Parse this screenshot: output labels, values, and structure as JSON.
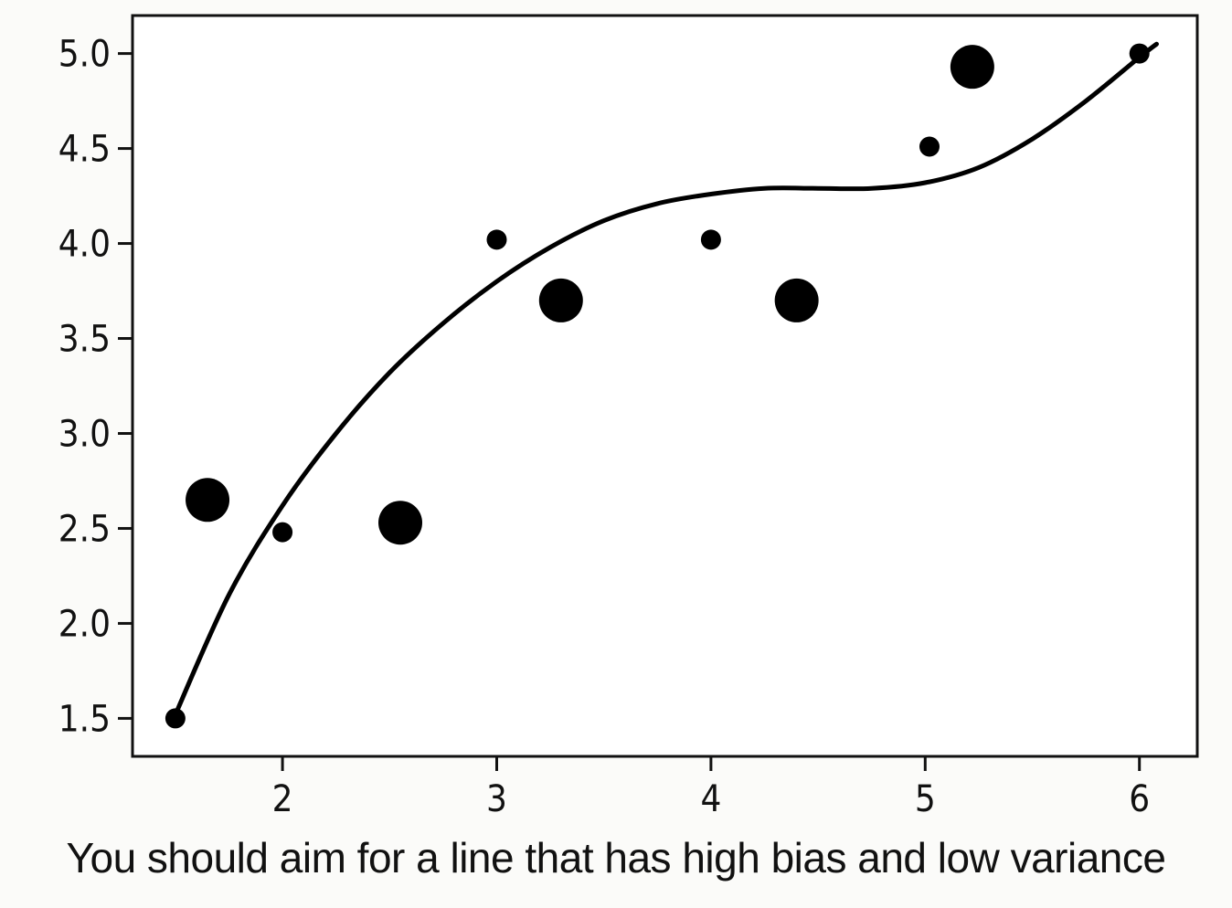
{
  "chart_data": {
    "type": "scatter",
    "title": "",
    "xlabel": "",
    "ylabel": "",
    "xlim": [
      1.3,
      6.27
    ],
    "ylim": [
      1.3,
      5.2
    ],
    "x_ticks": [
      {
        "value": 2,
        "label": "2"
      },
      {
        "value": 3,
        "label": "3"
      },
      {
        "value": 4,
        "label": "4"
      },
      {
        "value": 5,
        "label": "5"
      },
      {
        "value": 6,
        "label": "6"
      }
    ],
    "y_ticks": [
      {
        "value": 1.5,
        "label": "1.5"
      },
      {
        "value": 2.0,
        "label": "2.0"
      },
      {
        "value": 2.5,
        "label": "2.5"
      },
      {
        "value": 3.0,
        "label": "3.0"
      },
      {
        "value": 3.5,
        "label": "3.5"
      },
      {
        "value": 4.0,
        "label": "4.0"
      },
      {
        "value": 4.5,
        "label": "4.5"
      },
      {
        "value": 5.0,
        "label": "5.0"
      }
    ],
    "grid": false,
    "legend": "none",
    "point_color": "#000000",
    "points": [
      {
        "x": 1.5,
        "y": 1.5,
        "size": "small"
      },
      {
        "x": 1.65,
        "y": 2.65,
        "size": "large"
      },
      {
        "x": 2.0,
        "y": 2.48,
        "size": "small"
      },
      {
        "x": 2.55,
        "y": 2.53,
        "size": "large"
      },
      {
        "x": 3.0,
        "y": 4.02,
        "size": "small"
      },
      {
        "x": 3.3,
        "y": 3.7,
        "size": "large"
      },
      {
        "x": 4.0,
        "y": 4.02,
        "size": "small"
      },
      {
        "x": 4.4,
        "y": 3.7,
        "size": "large"
      },
      {
        "x": 5.02,
        "y": 4.51,
        "size": "small"
      },
      {
        "x": 5.22,
        "y": 4.93,
        "size": "large"
      },
      {
        "x": 6.0,
        "y": 5.0,
        "size": "small"
      }
    ],
    "fit_curve": {
      "type": "line",
      "color": "#000000",
      "x": [
        1.5,
        1.75,
        2.0,
        2.25,
        2.5,
        2.75,
        3.0,
        3.25,
        3.5,
        3.75,
        4.0,
        4.25,
        4.5,
        4.75,
        5.0,
        5.25,
        5.5,
        5.75,
        6.0,
        6.08
      ],
      "y": [
        1.52,
        2.15,
        2.62,
        3.0,
        3.32,
        3.58,
        3.8,
        3.98,
        4.12,
        4.21,
        4.26,
        4.29,
        4.29,
        4.29,
        4.32,
        4.4,
        4.55,
        4.75,
        4.98,
        5.05
      ]
    }
  },
  "caption": "You should aim for a line that has high bias and low variance"
}
